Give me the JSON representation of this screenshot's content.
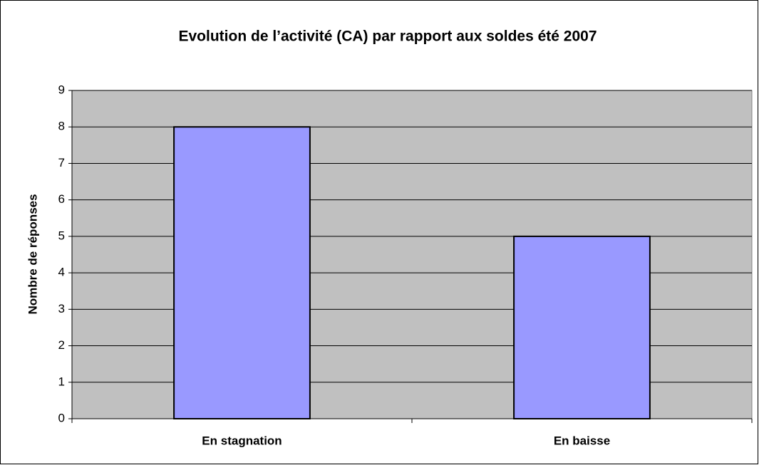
{
  "chart_data": {
    "type": "bar",
    "title": "Evolution de l’activité (CA) par rapport aux soldes été 2007",
    "y_label": "Nombre de réponses",
    "categories": [
      "En stagnation",
      "En baisse"
    ],
    "values": [
      8,
      5
    ],
    "color": "#9999ff",
    "ylim": [
      0,
      9
    ],
    "yticks": [
      0,
      1,
      2,
      3,
      4,
      5,
      6,
      7,
      8,
      9
    ],
    "grid": true
  }
}
